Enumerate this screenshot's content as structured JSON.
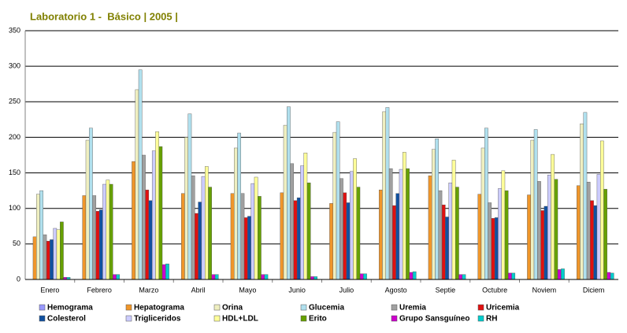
{
  "chart_data": {
    "type": "bar",
    "title": "Laboratorio 1 -  Básico | 2005 |",
    "categories": [
      "Enero",
      "Febrero",
      "Marzo",
      "Abril",
      "Mayo",
      "Junio",
      "Julio",
      "Agosto",
      "Septie",
      "Octubre",
      "Noviem",
      "Diciem"
    ],
    "series": [
      {
        "name": "Hemograma",
        "color": "#9999ff",
        "values": [
          0,
          0,
          0,
          0,
          0,
          0,
          0,
          0,
          0,
          0,
          0,
          0
        ]
      },
      {
        "name": "Hepatograma",
        "color": "#f0962a",
        "values": [
          60,
          118,
          166,
          121,
          121,
          122,
          107,
          126,
          146,
          120,
          119,
          132
        ]
      },
      {
        "name": "Orina",
        "color": "#efefc0",
        "values": [
          120,
          196,
          267,
          200,
          185,
          217,
          207,
          236,
          183,
          185,
          196,
          219
        ]
      },
      {
        "name": "Glucemia",
        "color": "#b0e0ee",
        "values": [
          125,
          213,
          295,
          233,
          206,
          243,
          222,
          242,
          198,
          213,
          211,
          235
        ]
      },
      {
        "name": "Uremia",
        "color": "#a0a0a0",
        "values": [
          63,
          118,
          175,
          146,
          121,
          163,
          142,
          156,
          125,
          108,
          138,
          137
        ]
      },
      {
        "name": "Uricemia",
        "color": "#e01010",
        "values": [
          54,
          96,
          126,
          93,
          87,
          111,
          122,
          104,
          105,
          86,
          97,
          111
        ]
      },
      {
        "name": "Colesterol",
        "color": "#1050a0",
        "values": [
          56,
          98,
          111,
          109,
          89,
          115,
          108,
          121,
          88,
          87,
          103,
          104
        ]
      },
      {
        "name": "Trigliceridos",
        "color": "#ccccff",
        "values": [
          72,
          134,
          181,
          145,
          135,
          160,
          152,
          155,
          136,
          128,
          147,
          148
        ]
      },
      {
        "name": "HDL+LDL",
        "color": "#ffff99",
        "values": [
          70,
          140,
          208,
          159,
          144,
          178,
          170,
          179,
          168,
          153,
          176,
          195
        ]
      },
      {
        "name": "Erito",
        "color": "#66a000",
        "values": [
          81,
          134,
          187,
          130,
          117,
          136,
          130,
          156,
          130,
          125,
          141,
          127
        ]
      },
      {
        "name": "Grupo Sansguíneo",
        "color": "#cc00cc",
        "values": [
          3,
          7,
          21,
          7,
          7,
          4,
          8,
          10,
          7,
          9,
          14,
          10
        ]
      },
      {
        "name": "RH",
        "color": "#00cccc",
        "values": [
          3,
          7,
          22,
          7,
          7,
          4,
          8,
          11,
          7,
          9,
          15,
          9
        ]
      }
    ],
    "ylim": [
      0,
      350
    ],
    "yticks": [
      0,
      50,
      100,
      150,
      200,
      250,
      300,
      350
    ],
    "grid": true
  }
}
